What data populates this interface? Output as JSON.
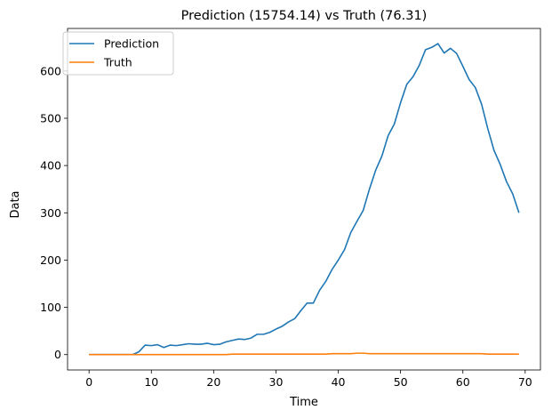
{
  "chart_data": {
    "type": "line",
    "title": "Prediction (15754.14) vs Truth (76.31)",
    "xlabel": "Time",
    "ylabel": "Data",
    "xlim": [
      -3.45,
      72.45
    ],
    "ylim": [
      -32.5,
      690
    ],
    "xticks": [
      0,
      10,
      20,
      30,
      40,
      50,
      60,
      70
    ],
    "yticks": [
      0,
      100,
      200,
      300,
      400,
      500,
      600
    ],
    "grid": false,
    "legend_placement": "top-left",
    "x": [
      0,
      1,
      2,
      3,
      4,
      5,
      6,
      7,
      8,
      9,
      10,
      11,
      12,
      13,
      14,
      15,
      16,
      17,
      18,
      19,
      20,
      21,
      22,
      23,
      24,
      25,
      26,
      27,
      28,
      29,
      30,
      31,
      32,
      33,
      34,
      35,
      36,
      37,
      38,
      39,
      40,
      41,
      42,
      43,
      44,
      45,
      46,
      47,
      48,
      49,
      50,
      51,
      52,
      53,
      54,
      55,
      56,
      57,
      58,
      59,
      60,
      61,
      62,
      63,
      64,
      65,
      66,
      67,
      68,
      69
    ],
    "series": [
      {
        "name": "Prediction",
        "color": "#1f77b4",
        "values": [
          0,
          0,
          0,
          0,
          0,
          0,
          0,
          0,
          6,
          20,
          19,
          21,
          15,
          20,
          19,
          21,
          23,
          22,
          22,
          24,
          21,
          22,
          27,
          30,
          33,
          32,
          35,
          43,
          43,
          47,
          54,
          60,
          69,
          76,
          93,
          109,
          109,
          136,
          155,
          180,
          200,
          222,
          258,
          282,
          305,
          350,
          390,
          420,
          463,
          488,
          533,
          572,
          588,
          612,
          645,
          650,
          658,
          638,
          648,
          637,
          610,
          582,
          565,
          530,
          478,
          432,
          402,
          366,
          340,
          300
        ]
      },
      {
        "name": "Truth",
        "color": "#ff7f0e",
        "values": [
          0,
          0,
          0,
          0,
          0,
          0,
          0,
          0,
          0,
          0,
          0,
          0,
          0,
          0,
          0,
          0,
          0,
          0,
          0,
          0,
          0,
          0,
          0,
          1,
          1,
          1,
          1,
          1,
          1,
          1,
          1,
          1,
          1,
          1,
          1,
          1,
          1,
          1,
          1,
          2,
          2,
          2,
          2,
          3,
          3,
          2,
          2,
          2,
          2,
          2,
          2,
          2,
          2,
          2,
          2,
          2,
          2,
          2,
          2,
          2,
          2,
          2,
          2,
          2,
          1,
          1,
          1,
          1,
          1,
          1
        ]
      }
    ]
  }
}
